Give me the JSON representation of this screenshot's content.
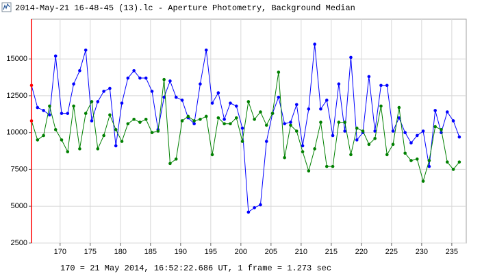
{
  "chart_data": {
    "type": "line",
    "title": "2014-May-21 16-48-45 (13).lc - Aperture Photometry, Background Median",
    "annotation": "170 = 21 May 2014, 16:52:22.686 UT, 1 frame = 1.273 sec",
    "x": [
      165.25,
      166.25,
      167.25,
      168.25,
      169.25,
      170.25,
      171.25,
      172.25,
      173.25,
      174.25,
      175.25,
      176.25,
      177.25,
      178.25,
      179.25,
      180.25,
      181.25,
      182.25,
      183.25,
      184.25,
      185.25,
      186.25,
      187.25,
      188.25,
      189.25,
      190.25,
      191.25,
      192.25,
      193.25,
      194.25,
      195.25,
      196.25,
      197.25,
      198.25,
      199.25,
      200.25,
      201.25,
      202.25,
      203.25,
      204.25,
      205.25,
      206.25,
      207.25,
      208.25,
      209.25,
      210.25,
      211.25,
      212.25,
      213.25,
      214.25,
      215.25,
      216.25,
      217.25,
      218.25,
      219.25,
      220.25,
      221.25,
      222.25,
      223.25,
      224.25,
      225.25,
      226.25,
      227.25,
      228.25,
      229.25,
      230.25,
      231.25,
      232.25,
      233.25,
      234.25,
      235.25,
      236.25
    ],
    "series": [
      {
        "color": "#0000ff",
        "values": [
          13200,
          11700,
          11500,
          11200,
          15200,
          11300,
          11300,
          13300,
          14200,
          15600,
          10800,
          12100,
          12800,
          13000,
          9100,
          12000,
          13700,
          14200,
          13700,
          13700,
          12800,
          10200,
          12400,
          13500,
          12400,
          12200,
          11000,
          10600,
          13300,
          15600,
          12000,
          12700,
          10900,
          12000,
          11800,
          10300,
          4600,
          4900,
          5100,
          9400,
          11300,
          12400,
          10600,
          10700,
          11900,
          9100,
          11600,
          16000,
          11600,
          12200,
          9800,
          13300,
          10100,
          15100,
          9500,
          10000,
          13800,
          10100,
          13200,
          13200,
          10100,
          11000,
          10000,
          9300,
          9800,
          10100,
          7700,
          11500,
          10000,
          11400,
          10800,
          9700
        ]
      },
      {
        "color": "#008000",
        "values": [
          10800,
          9500,
          9800,
          11800,
          10200,
          9500,
          8700,
          11800,
          8900,
          11300,
          12100,
          8900,
          9800,
          11200,
          10200,
          9400,
          10600,
          10900,
          10700,
          10900,
          10000,
          10100,
          13600,
          7900,
          8200,
          10800,
          11100,
          10800,
          10900,
          11100,
          8500,
          11000,
          10600,
          10600,
          11000,
          9400,
          12100,
          10900,
          11400,
          10500,
          11300,
          14100,
          8300,
          10500,
          10100,
          8700,
          7400,
          8900,
          10700,
          7700,
          7700,
          10700,
          10700,
          8500,
          10300,
          10100,
          9200,
          9600,
          11800,
          8500,
          9200,
          11700,
          8600,
          8100,
          8200,
          6700,
          8100,
          10400,
          10200,
          8000,
          7500,
          8000
        ]
      }
    ],
    "cursor_x": 165.25,
    "cursor_color": "#ff0000",
    "xlim": [
      165.25,
      237.4
    ],
    "ylim": [
      2500,
      17700
    ],
    "xticks": [
      170,
      175,
      180,
      185,
      190,
      195,
      200,
      205,
      210,
      215,
      220,
      225,
      230,
      235
    ],
    "yticks": [
      2500,
      5000,
      7500,
      10000,
      12500,
      15000
    ],
    "grid": true
  }
}
